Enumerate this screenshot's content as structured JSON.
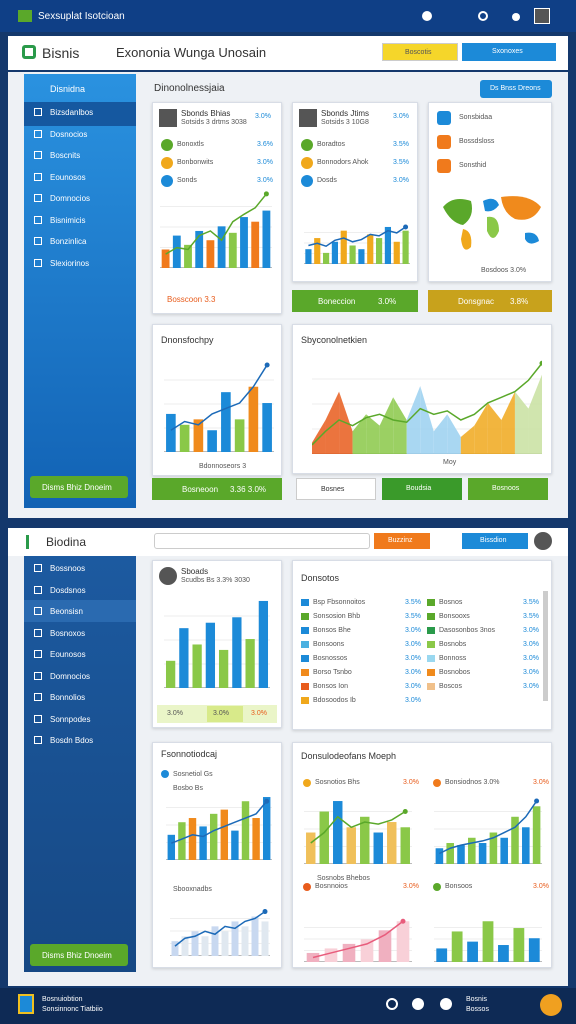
{
  "top_bar": {
    "brand": "Sexsuplat Isotcioan"
  },
  "header": {
    "logo": "Bisnis",
    "title": "Exononia Wunga Unosain",
    "button_primary": "Boscotis",
    "button_secondary": "Sxonoxes"
  },
  "sidebar": {
    "title": "Disnidna",
    "items": [
      "Bizsdanlbos",
      "Dosnocios",
      "Boscnits",
      "Eounosos",
      "Domnocios",
      "Bisnimicis",
      "Bonzinlica",
      "Slexiorinos"
    ],
    "button": "Disms Bhiz Dnoeim"
  },
  "main": {
    "title": "Dinonolnessjaia",
    "action": "Ds Bnss Dreons"
  },
  "card_a": {
    "name": "Sbonds Bhias",
    "meta": "Sotsids 3 drtms 3038",
    "stat": "3.0%",
    "rows": [
      {
        "label": "Bonoxtls",
        "value": "3.6%"
      },
      {
        "label": "Bonbonwits",
        "value": "3.0%"
      },
      {
        "label": "Sonds",
        "value": "3.0%"
      }
    ],
    "footer": "Bosscoon 3.3"
  },
  "card_b": {
    "name": "Sbonds Jtims",
    "meta": "Sotsids 3 10G8",
    "stat": "3.0%",
    "rows": [
      {
        "label": "Boradtos",
        "value": "3.5%"
      },
      {
        "label": "Bonnodors Ahok",
        "value": "3.5%"
      },
      {
        "label": "Dosds",
        "value": "3.0%"
      }
    ],
    "footer_label": "Boneccion",
    "footer_value": "3.0%"
  },
  "card_c": {
    "rows": [
      "Sonsbidaa",
      "Bossdsloss",
      "Sonsthid"
    ],
    "caption": "Bosdoos 3.0%",
    "footer_label": "Donsgnac",
    "footer_value": "3.8%"
  },
  "card_d": {
    "title": "Dnonsfochpy",
    "caption": "Bdonnoseors 3",
    "footer_label": "Bosneoon",
    "footer_value": "3.36 3.0%"
  },
  "card_e": {
    "title": "Sbyconolnetkien",
    "axis": "Moy",
    "buttons": [
      "Bosnes",
      "Boudsia",
      "Bosnoos"
    ]
  },
  "bottom_header": {
    "logo": "Biodina",
    "button_orange": "Buzzinz",
    "button_blue": "Bissdion"
  },
  "sidebar2": {
    "items": [
      "Bossnoos",
      "Dosdsnos",
      "Beonsisn",
      "Bosnoxos",
      "Eounosos",
      "Domnocios",
      "Bonnolios",
      "Sonnpodes",
      "Bosdn Bdos"
    ],
    "button": "Disms Bhiz Dnoeim"
  },
  "card_f": {
    "name": "Sboads",
    "meta": "Scudbs Bs 3.3% 3030",
    "stats": [
      "3.0%",
      "3.0%",
      "3.0%"
    ]
  },
  "card_g": {
    "title": "Donsotos",
    "left": [
      {
        "label": "Bsp Fbsonnoitos",
        "value": "3.5%",
        "color": "#1c8ad8"
      },
      {
        "label": "Sonsosion Bhb",
        "value": "3.5%",
        "color": "#5aa82a"
      },
      {
        "label": "Bonsos Bhe",
        "value": "3.0%",
        "color": "#1c8ad8"
      },
      {
        "label": "Bonsoons",
        "value": "3.0%",
        "color": "#4ab0e0"
      },
      {
        "label": "Bosnossos",
        "value": "3.0%",
        "color": "#1c8ad8"
      },
      {
        "label": "Borso Tsnbo",
        "value": "3.0%",
        "color": "#f08a1c"
      },
      {
        "label": "Bonsos Ion",
        "value": "3.0%",
        "color": "#e85c1c"
      },
      {
        "label": "Bdosoodos Ib",
        "value": "3.0%",
        "color": "#f0a81c"
      }
    ],
    "right": [
      {
        "label": "Bosnos",
        "value": "3.5%",
        "color": "#5aa82a"
      },
      {
        "label": "Bonsooxs",
        "value": "3.5%",
        "color": "#5aa82a"
      },
      {
        "label": "Dasosonbos 3nos",
        "value": "3.0%",
        "color": "#2a9a4a"
      },
      {
        "label": "Bosnobs",
        "value": "3.0%",
        "color": "#8ac848"
      },
      {
        "label": "Bonnoss",
        "value": "3.0%",
        "color": "#9ad8f0"
      },
      {
        "label": "Bosnobos",
        "value": "3.0%",
        "color": "#f08a1c"
      },
      {
        "label": "Boscos",
        "value": "3.0%",
        "color": "#f0c08a"
      }
    ]
  },
  "card_h": {
    "title": "Fsonnotiodcaj",
    "legend": [
      "Sosnetiol Gs",
      "Bosbo Bs"
    ],
    "sub": "Sbooxnadbs"
  },
  "card_i": {
    "title": "Donsulodeofans Moeph",
    "labels": [
      "Sosnotios Bhs",
      "Bonsiodnos 3.0%",
      "Bosnnoios",
      "Bonsoos"
    ],
    "values": [
      "3.0%",
      "3.0%",
      "3.0%",
      "3.0%"
    ],
    "caption": "Sosnobs Bhebos"
  },
  "footer": {
    "line1": "Bosnuiobtion",
    "line2": "Sonsinnonc Tiatbiio",
    "right1": "Bosnis",
    "right2": "Bossos"
  },
  "charts": {
    "a": {
      "bars": [
        20,
        35,
        25,
        40,
        30,
        45,
        38,
        55,
        50,
        62
      ],
      "bar_colors": [
        "#f07a1c",
        "#1c8ad8",
        "#8ac848",
        "#1c8ad8"
      ],
      "line": [
        15,
        22,
        20,
        35,
        40,
        30,
        50,
        58,
        65,
        80
      ],
      "line_color": "#5aa82a"
    },
    "b": {
      "bars": [
        20,
        35,
        15,
        30,
        45,
        25,
        20,
        40,
        35,
        50,
        30,
        45
      ],
      "bar_colors": [
        "#1c8ad8",
        "#f0a81c",
        "#8ac848"
      ],
      "line": [
        25,
        28,
        24,
        32,
        35,
        30,
        33,
        40,
        38,
        45,
        42,
        50
      ],
      "line_color": "#1c6ab8"
    },
    "d": {
      "bars": [
        35,
        25,
        30,
        20,
        55,
        30,
        60,
        45
      ],
      "bar_colors": [
        "#1c8ad8",
        "#8ac848",
        "#f08a1c",
        "#1c8ad8"
      ],
      "line": [
        20,
        28,
        25,
        35,
        40,
        45,
        60,
        80
      ],
      "line_color": "#1c6ab8"
    },
    "e": {
      "area": [
        10,
        30,
        55,
        20,
        35,
        25,
        50,
        30,
        60,
        20,
        35,
        15,
        25,
        45,
        30,
        55,
        40,
        70
      ],
      "area_colors": [
        "#e85c1c",
        "#8ac848",
        "#9ad0f0",
        "#f0a81c",
        "#c8e0a0"
      ],
      "line": [
        8,
        20,
        30,
        25,
        32,
        35,
        30,
        28,
        40,
        35,
        38,
        30,
        35,
        45,
        50,
        55,
        65,
        80
      ],
      "line_color": "#5aa82a"
    },
    "f": {
      "bars": [
        25,
        55,
        40,
        60,
        35,
        65,
        45,
        80
      ],
      "bar_colors": [
        "#8ac848",
        "#1c8ad8"
      ]
    },
    "h1": {
      "bars": [
        30,
        45,
        50,
        40,
        55,
        60,
        35,
        70,
        50,
        75
      ],
      "bar_colors": [
        "#1c8ad8",
        "#8ac848",
        "#f08a1c"
      ],
      "line": [
        20,
        25,
        30,
        28,
        35,
        40,
        45,
        50,
        55,
        70
      ],
      "line_color": "#1c6ab8"
    },
    "h2": {
      "bars": [
        15,
        20,
        25,
        20,
        30,
        25,
        35,
        30,
        40,
        35
      ],
      "bar_colors": [
        "#c8d8f0",
        "#e0e8f0"
      ],
      "line": [
        10,
        18,
        20,
        25,
        22,
        30,
        28,
        35,
        38,
        45
      ],
      "line_color": "#1c6ab8"
    },
    "i1": {
      "bars": [
        30,
        50,
        60,
        35,
        45,
        30,
        40,
        35
      ],
      "bar_colors": [
        "#f0c05a",
        "#8ac848",
        "#1c8ad8"
      ],
      "line": [
        20,
        30,
        45,
        35,
        40,
        38,
        42,
        50
      ],
      "line_color": "#5aa82a"
    },
    "i2": {
      "bars": [
        15,
        20,
        18,
        25,
        20,
        30,
        25,
        45,
        35,
        55
      ],
      "bar_colors": [
        "#1c8ad8",
        "#8ac848"
      ],
      "line": [
        10,
        15,
        18,
        20,
        22,
        25,
        30,
        35,
        45,
        60
      ],
      "line_color": "#1c6ab8"
    },
    "i3": {
      "bars": [
        10,
        15,
        20,
        25,
        35,
        45
      ],
      "bar_colors": [
        "#f0b0c0",
        "#f8d0d8"
      ],
      "line": [
        5,
        10,
        15,
        20,
        30,
        45
      ],
      "line_color": "#e85c7c"
    },
    "i4": {
      "bars": [
        20,
        45,
        30,
        60,
        25,
        50,
        35
      ],
      "bar_colors": [
        "#1c8ad8",
        "#8ac848"
      ]
    }
  }
}
